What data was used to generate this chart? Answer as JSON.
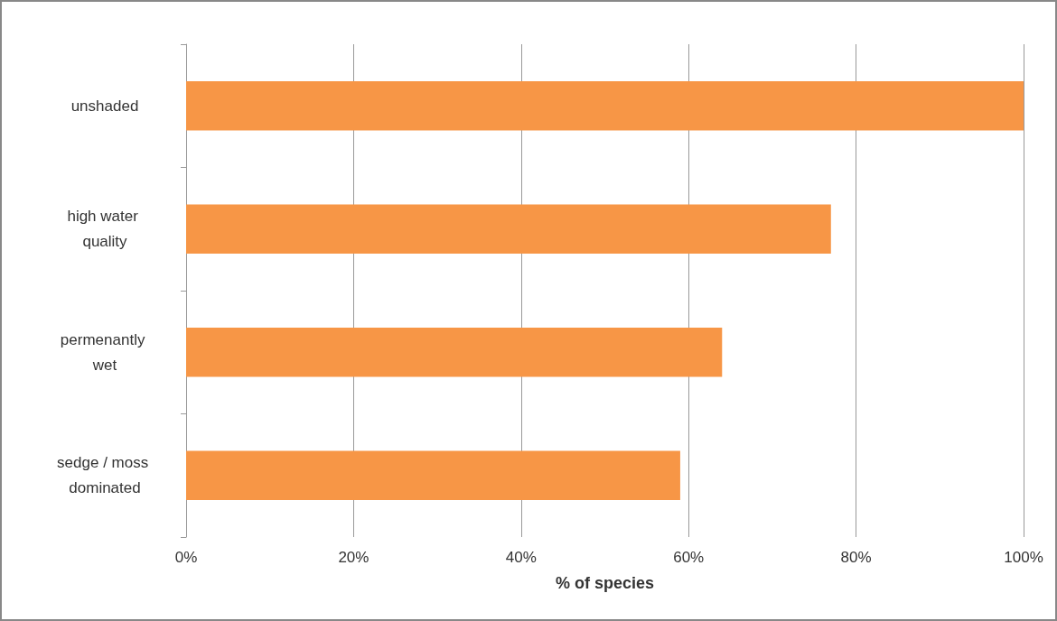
{
  "chart_data": {
    "type": "bar",
    "orientation": "horizontal",
    "xlabel": "% of species",
    "categories": [
      "unshaded",
      "high water quality",
      "permenantly wet",
      "sedge / moss dominated"
    ],
    "values": [
      100,
      77,
      64,
      59
    ],
    "color": "#f79646",
    "xlim": [
      0,
      100
    ],
    "xticks": [
      {
        "value": 0,
        "label": "0%"
      },
      {
        "value": 20,
        "label": "20%"
      },
      {
        "value": 40,
        "label": "40%"
      },
      {
        "value": 60,
        "label": "60%"
      },
      {
        "value": 80,
        "label": "80%"
      },
      {
        "value": 100,
        "label": "100%"
      }
    ],
    "grid": "x"
  }
}
